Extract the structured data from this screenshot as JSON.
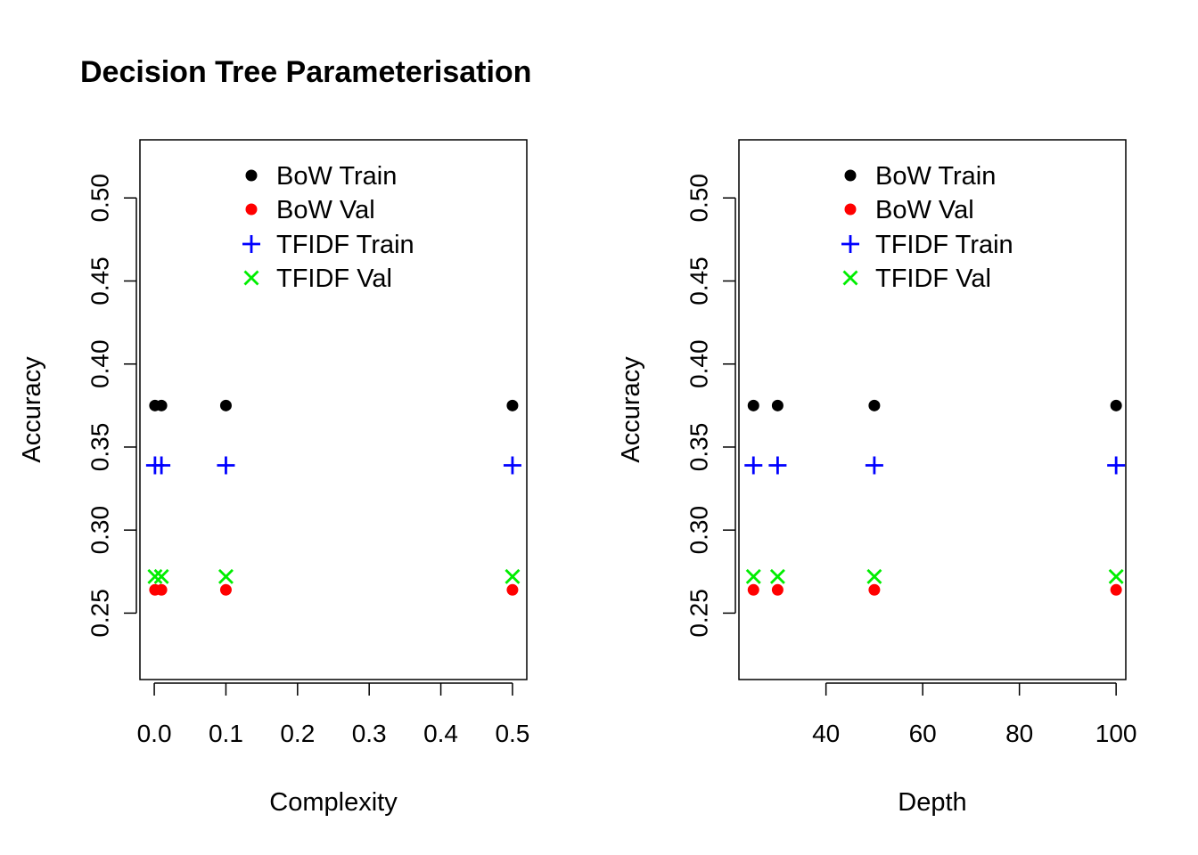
{
  "title": "Decision Tree Parameterisation",
  "colors": {
    "bow_train": "#000000",
    "bow_val": "#ff0000",
    "tfidf_train": "#0000ff",
    "tfidf_val": "#00ee00"
  },
  "legend": [
    {
      "label": "BoW Train",
      "marker": "filled-circle",
      "color": "#000000"
    },
    {
      "label": "BoW Val",
      "marker": "filled-circle",
      "color": "#ff0000"
    },
    {
      "label": "TFIDF Train",
      "marker": "plus",
      "color": "#0000ff"
    },
    {
      "label": "TFIDF Val",
      "marker": "cross",
      "color": "#00ee00"
    }
  ],
  "chart_data": [
    {
      "type": "scatter",
      "title": "Decision Tree Parameterisation",
      "xlabel": "Complexity",
      "ylabel": "Accuracy",
      "xlim": [
        -0.02,
        0.52
      ],
      "ylim": [
        0.21,
        0.535
      ],
      "xticks": [
        0.0,
        0.1,
        0.2,
        0.3,
        0.4,
        0.5
      ],
      "xtick_labels": [
        "0.0",
        "0.1",
        "0.2",
        "0.3",
        "0.4",
        "0.5"
      ],
      "yticks": [
        0.25,
        0.3,
        0.35,
        0.4,
        0.45,
        0.5
      ],
      "ytick_labels": [
        "0.25",
        "0.30",
        "0.35",
        "0.40",
        "0.45",
        "0.50"
      ],
      "legend_position": "top",
      "grid": false,
      "x": [
        0.001,
        0.01,
        0.1,
        0.5
      ],
      "series": [
        {
          "name": "BoW Train",
          "values": [
            0.375,
            0.375,
            0.375,
            0.375
          ]
        },
        {
          "name": "BoW Val",
          "values": [
            0.264,
            0.264,
            0.264,
            0.264
          ]
        },
        {
          "name": "TFIDF Train",
          "values": [
            0.339,
            0.339,
            0.339,
            0.339
          ]
        },
        {
          "name": "TFIDF Val",
          "values": [
            0.272,
            0.272,
            0.272,
            0.272
          ]
        }
      ]
    },
    {
      "type": "scatter",
      "xlabel": "Depth",
      "ylabel": "Accuracy",
      "xlim": [
        22,
        102
      ],
      "ylim": [
        0.21,
        0.535
      ],
      "xticks": [
        40,
        60,
        80,
        100
      ],
      "xtick_labels": [
        "40",
        "60",
        "80",
        "100"
      ],
      "yticks": [
        0.25,
        0.3,
        0.35,
        0.4,
        0.45,
        0.5
      ],
      "ytick_labels": [
        "0.25",
        "0.30",
        "0.35",
        "0.40",
        "0.45",
        "0.50"
      ],
      "legend_position": "top",
      "grid": false,
      "x": [
        25,
        30,
        50,
        100
      ],
      "series": [
        {
          "name": "BoW Train",
          "values": [
            0.375,
            0.375,
            0.375,
            0.375
          ]
        },
        {
          "name": "BoW Val",
          "values": [
            0.264,
            0.264,
            0.264,
            0.264
          ]
        },
        {
          "name": "TFIDF Train",
          "values": [
            0.339,
            0.339,
            0.339,
            0.339
          ]
        },
        {
          "name": "TFIDF Val",
          "values": [
            0.272,
            0.272,
            0.272,
            0.272
          ]
        }
      ]
    }
  ]
}
